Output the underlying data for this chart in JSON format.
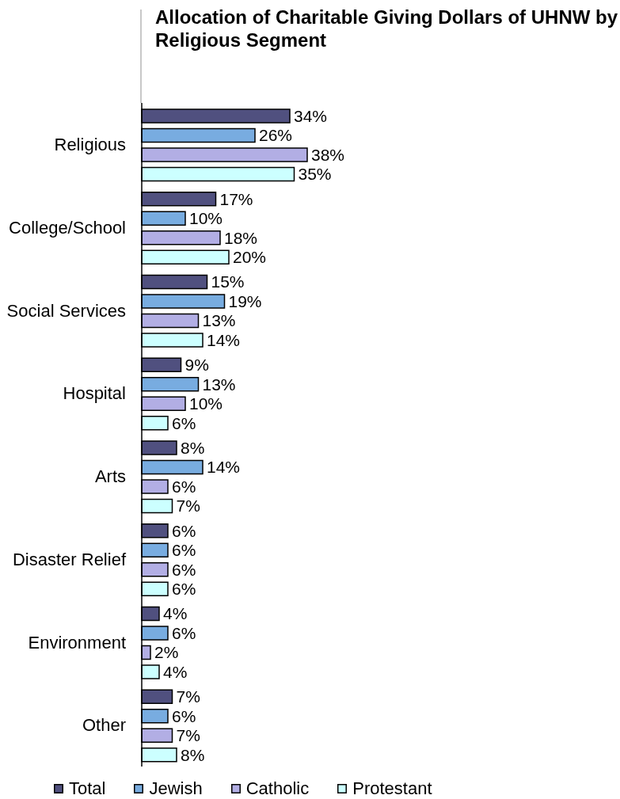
{
  "chart_data": {
    "type": "bar",
    "orientation": "horizontal",
    "title": "Allocation of Charitable Giving Dollars of UHNW by Religious Segment",
    "categories": [
      "Religious",
      "College/School",
      "Social Services",
      "Hospital",
      "Arts",
      "Disaster Relief",
      "Environment",
      "Other"
    ],
    "series": [
      {
        "name": "Total",
        "color": "#50507f",
        "values": [
          34,
          17,
          15,
          9,
          8,
          6,
          4,
          7
        ],
        "value_labels": [
          "34%",
          "17%",
          "15%",
          "9%",
          "8%",
          "6%",
          "4%",
          "7%"
        ]
      },
      {
        "name": "Jewish",
        "color": "#78ace0",
        "values": [
          26,
          10,
          19,
          13,
          14,
          6,
          6,
          6
        ],
        "value_labels": [
          "26%",
          "10%",
          "19%",
          "13%",
          "14%",
          "6%",
          "6%",
          "6%"
        ]
      },
      {
        "name": "Catholic",
        "color": "#b2aee4",
        "values": [
          38,
          18,
          13,
          10,
          6,
          6,
          2,
          7
        ],
        "value_labels": [
          "38%",
          "18%",
          "13%",
          "10%",
          "6%",
          "6%",
          "2%",
          "7%"
        ]
      },
      {
        "name": "Protestant",
        "color": "#ccffff",
        "values": [
          35,
          20,
          14,
          6,
          7,
          6,
          4,
          8
        ],
        "value_labels": [
          "35%",
          "20%",
          "14%",
          "6%",
          "7%",
          "6%",
          "4%",
          "8%"
        ]
      }
    ],
    "legend": "bottom"
  }
}
